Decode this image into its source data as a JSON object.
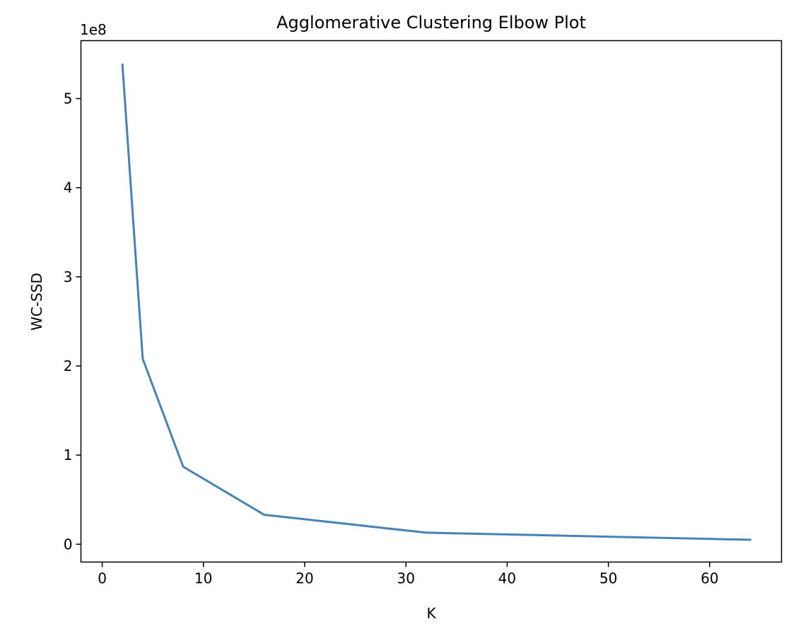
{
  "chart_data": {
    "type": "line",
    "title": "Agglomerative Clustering Elbow Plot",
    "xlabel": "K",
    "ylabel": "WC-SSD",
    "y_offset_label": "1e8",
    "xlim": [
      -2.1,
      67.1
    ],
    "ylim": [
      -0.2,
      5.65
    ],
    "y_scale_multiplier": 100000000,
    "xticks": [
      0,
      10,
      20,
      30,
      40,
      50,
      60
    ],
    "yticks": [
      0,
      1,
      2,
      3,
      4,
      5
    ],
    "grid": false,
    "series": [
      {
        "color": "#4682b4",
        "x": [
          2,
          4,
          8,
          16,
          32,
          64
        ],
        "y": [
          5.38,
          2.08,
          0.87,
          0.33,
          0.13,
          0.05
        ]
      }
    ]
  }
}
